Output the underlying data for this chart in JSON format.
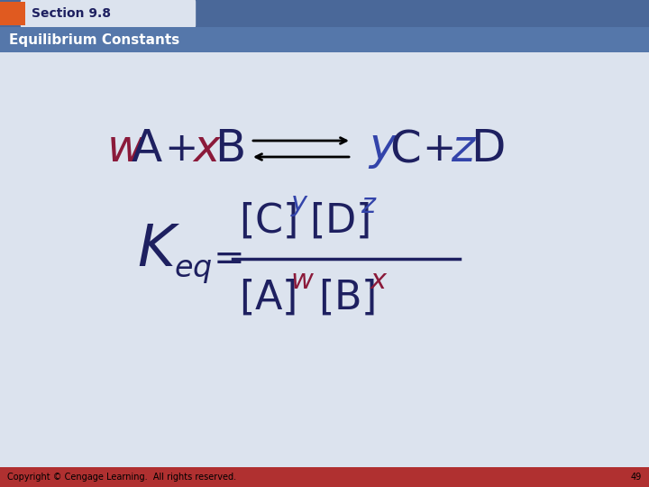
{
  "bg_main": "#dce3ee",
  "bg_header_top": "#4a6899",
  "bg_section_label": "#e05a20",
  "bg_header_bar": "#5577aa",
  "bg_footer": "#b03030",
  "section_text": "Section 9.8",
  "header_text": "Equilibrium Constants",
  "footer_text": "Copyright © Cengage Learning.  All rights reserved.",
  "footer_number": "49",
  "color_dark_blue": "#1e2060",
  "color_red": "#8b1a3a",
  "color_purple_blue": "#3344aa",
  "color_black": "#000000"
}
